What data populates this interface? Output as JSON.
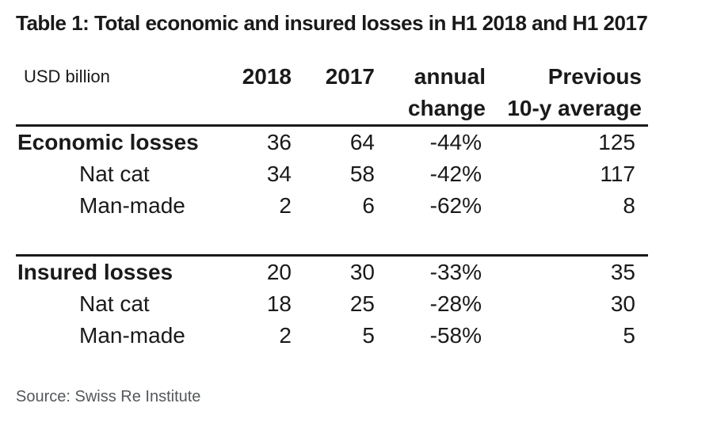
{
  "chart_data": {
    "type": "table",
    "title": "Table 1: Total economic and insured losses in H1 2018 and H1 2017",
    "unit": "USD billion",
    "columns": [
      "2018",
      "2017",
      "annual change",
      "Previous 10-y average"
    ],
    "rows": [
      {
        "label": "Economic losses",
        "group": true,
        "values": [
          36,
          64,
          "-44%",
          125
        ]
      },
      {
        "label": "Nat cat",
        "indent": true,
        "values": [
          34,
          58,
          "-42%",
          117
        ]
      },
      {
        "label": "Man-made",
        "indent": true,
        "values": [
          2,
          6,
          "-62%",
          8
        ]
      },
      {
        "label": "Insured losses",
        "group": true,
        "values": [
          20,
          30,
          "-33%",
          35
        ]
      },
      {
        "label": "Nat cat",
        "indent": true,
        "values": [
          18,
          25,
          "-28%",
          30
        ]
      },
      {
        "label": "Man-made",
        "indent": true,
        "values": [
          2,
          5,
          "-58%",
          5
        ]
      }
    ],
    "source": "Source: Swiss Re Institute"
  },
  "header": {
    "unit_label": "USD billion",
    "cols": [
      {
        "line1": "2018",
        "line2": ""
      },
      {
        "line1": "2017",
        "line2": ""
      },
      {
        "line1": "annual",
        "line2": "change"
      },
      {
        "line1": "Previous",
        "line2": "10-y average"
      }
    ]
  },
  "source": "Source: Swiss Re Institute",
  "colors": {
    "text": "#1a1a1a",
    "rule": "#1a1a1a",
    "source_text": "#53585a",
    "background": "#ffffff"
  }
}
